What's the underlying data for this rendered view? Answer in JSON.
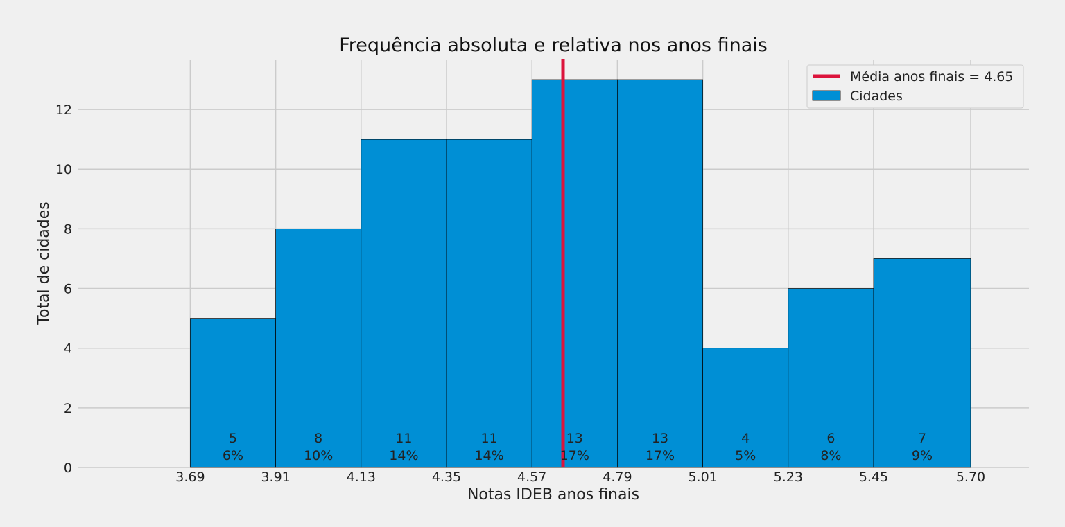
{
  "chart_data": {
    "type": "bar",
    "title": "Frequência absoluta e relativa nos anos finais",
    "xlabel": "Notas IDEB anos finais",
    "ylabel": "Total de cidades",
    "bin_edges": [
      3.69,
      3.91,
      4.13,
      4.35,
      4.57,
      4.79,
      5.01,
      5.23,
      5.45,
      5.7
    ],
    "x_tick_labels": [
      "3.69",
      "3.91",
      "4.13",
      "4.35",
      "4.57",
      "4.79",
      "5.01",
      "5.23",
      "5.45",
      "5.70"
    ],
    "counts": [
      5,
      8,
      11,
      11,
      13,
      13,
      4,
      6,
      7
    ],
    "count_labels": [
      "5",
      "8",
      "11",
      "11",
      "13",
      "13",
      "4",
      "6",
      "7"
    ],
    "percent_labels": [
      "6%",
      "10%",
      "14%",
      "14%",
      "17%",
      "17%",
      "5%",
      "8%",
      "9%"
    ],
    "y_ticks": [
      0,
      2,
      4,
      6,
      8,
      10,
      12
    ],
    "y_tick_labels": [
      "0",
      "2",
      "4",
      "6",
      "8",
      "10",
      "12"
    ],
    "xlim": [
      3.4,
      5.85
    ],
    "ylim": [
      0,
      13.65
    ],
    "mean_value": 4.65,
    "grid": true,
    "legend_position": "top-right",
    "series": [
      {
        "name": "Cidades",
        "color": "#008fd5"
      }
    ],
    "reference_line": {
      "name": "Média anos finais = 4.65",
      "color": "#dc143c"
    },
    "colors": {
      "background": "#f0f0f0",
      "bar": "#008fd5",
      "mean_line": "#dc143c",
      "grid": "#cbcbcb"
    }
  }
}
